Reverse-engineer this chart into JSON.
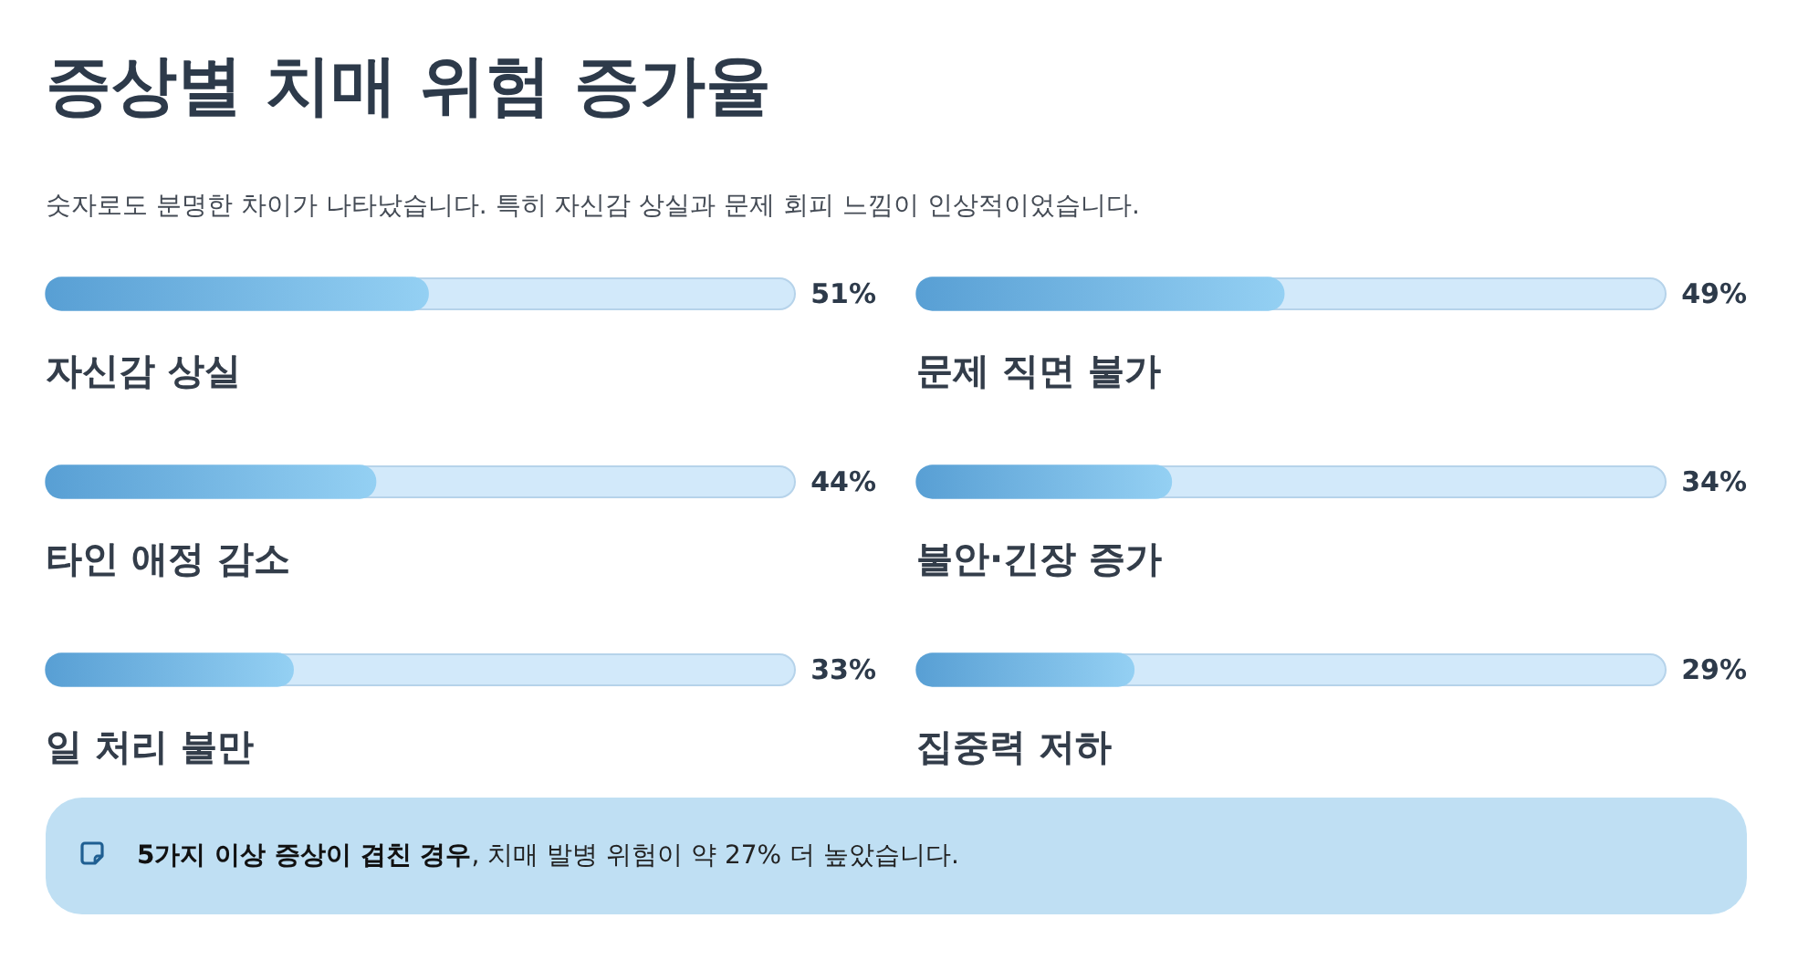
{
  "chart_data": [
    {
      "type": "bar",
      "orientation": "horizontal",
      "title": "증상별 치매 위험 증가율",
      "subtitle": "숫자로도 분명한 차이가 나타났습니다. 특히 자신감 상실과 문제 회피 느낌이 인상적이었습니다.",
      "categories": [
        "자신감 상실",
        "타인 애정 감소",
        "일 처리 불만"
      ],
      "values": [
        51,
        44,
        33
      ],
      "value_labels": [
        "51%",
        "44%",
        "33%"
      ],
      "color": "#72b9ea",
      "xlim": [
        0,
        100
      ],
      "tick_labels": "y",
      "annotations": [
        "5가지 이상 증상이 겹친 경우, 치매 발병 위험이 약 27% 더 높았습니다."
      ]
    },
    {
      "type": "bar",
      "orientation": "horizontal",
      "categories": [
        "문제 직면 불가",
        "불안·긴장 증가",
        "집중력 저하"
      ],
      "values": [
        49,
        34,
        29
      ],
      "value_labels": [
        "49%",
        "34%",
        "29%"
      ],
      "color": "#72b9ea",
      "xlim": [
        0,
        100
      ],
      "tick_labels": "y"
    }
  ]
}
